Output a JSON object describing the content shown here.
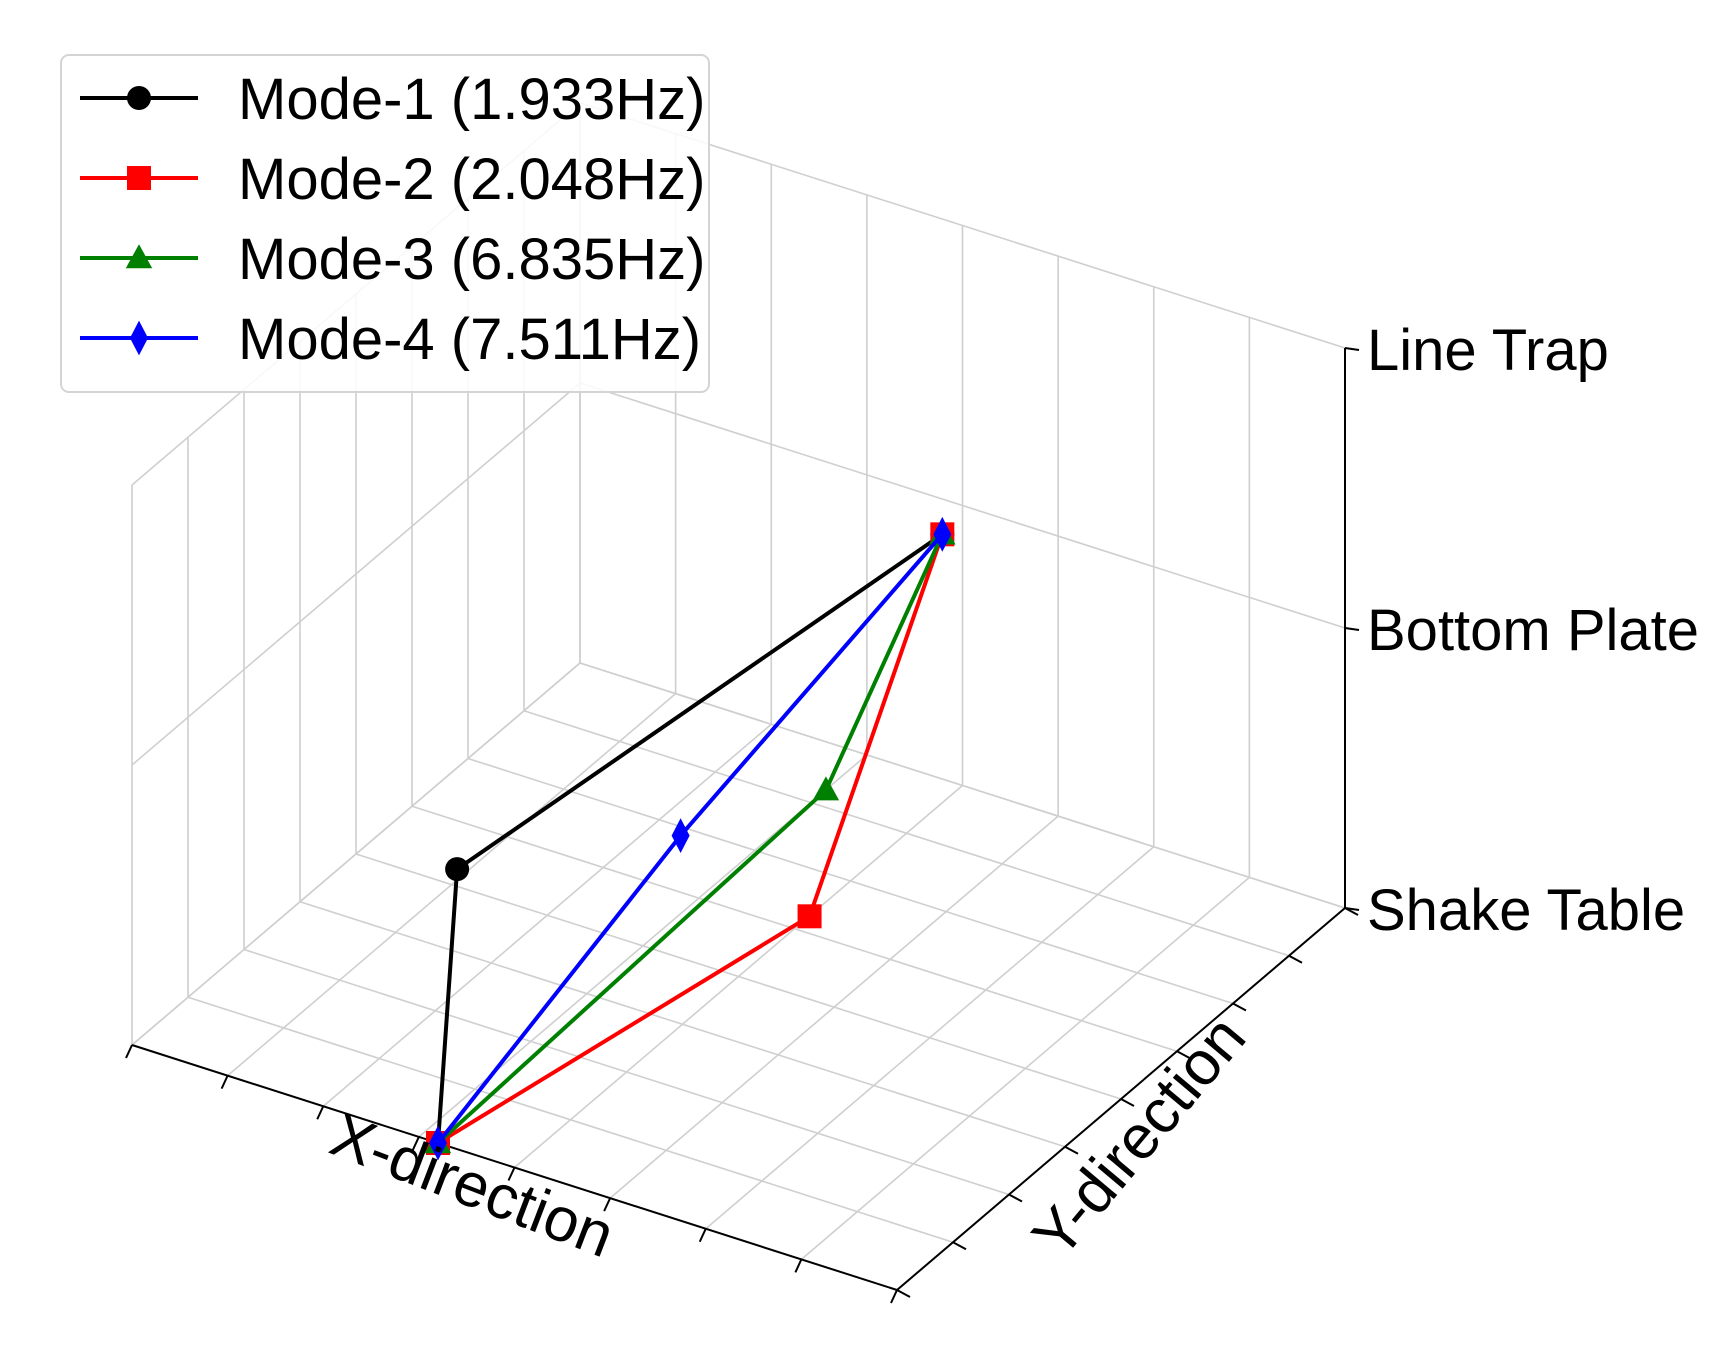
{
  "chart_data": {
    "type": "line3d",
    "axes": {
      "x": {
        "label": "X-direction",
        "range": [
          0,
          8
        ]
      },
      "y": {
        "label": "Y-direction",
        "range": [
          0,
          8
        ]
      },
      "z": {
        "label": "",
        "range": [
          0,
          2
        ],
        "ticks": [
          {
            "value": 0,
            "label": "Shake Table"
          },
          {
            "value": 1,
            "label": "Bottom Plate"
          },
          {
            "value": 2,
            "label": "Line Trap"
          }
        ]
      }
    },
    "grid": true,
    "legend": {
      "position": "top-left"
    },
    "series": [
      {
        "name": "Mode-1 (1.933Hz)",
        "color": "#000000",
        "marker": "circle",
        "points": [
          {
            "x": 3.2,
            "y": 0,
            "z": 0
          },
          {
            "x": 3.4,
            "y": 0,
            "z": 1
          },
          {
            "x": 6.6,
            "y": 3.2,
            "z": 2
          }
        ]
      },
      {
        "name": "Mode-2 (2.048Hz)",
        "color": "#ff0000",
        "marker": "square",
        "points": [
          {
            "x": 3.2,
            "y": 0,
            "z": 0
          },
          {
            "x": 6.5,
            "y": 1.0,
            "z": 1
          },
          {
            "x": 6.6,
            "y": 3.2,
            "z": 2
          }
        ]
      },
      {
        "name": "Mode-3 (6.835Hz)",
        "color": "#008000",
        "marker": "triangle",
        "points": [
          {
            "x": 3.2,
            "y": 0,
            "z": 0
          },
          {
            "x": 5.5,
            "y": 3.0,
            "z": 1
          },
          {
            "x": 6.6,
            "y": 3.2,
            "z": 2
          }
        ]
      },
      {
        "name": "Mode-4 (7.511Hz)",
        "color": "#0000ff",
        "marker": "diamond",
        "points": [
          {
            "x": 3.2,
            "y": 0,
            "z": 0
          },
          {
            "x": 4.8,
            "y": 1.6,
            "z": 1
          },
          {
            "x": 6.6,
            "y": 3.2,
            "z": 2
          }
        ]
      }
    ]
  }
}
